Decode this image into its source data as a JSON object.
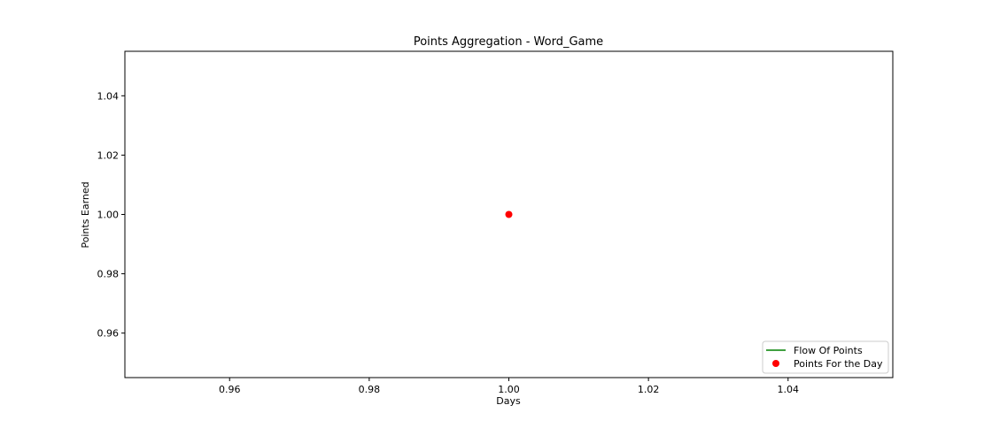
{
  "chart_data": {
    "type": "line",
    "title": "Points Aggregation - Word_Game",
    "xlabel": "Days",
    "ylabel": "Points Earned",
    "xlim": [
      0.945,
      1.055
    ],
    "ylim": [
      0.945,
      1.055
    ],
    "xticks": [
      "0.96",
      "0.98",
      "1.00",
      "1.02",
      "1.04"
    ],
    "yticks": [
      "0.96",
      "0.98",
      "1.00",
      "1.02",
      "1.04"
    ],
    "grid": false,
    "legend_position": "lower right",
    "series": [
      {
        "name": "Flow Of Points",
        "kind": "line",
        "color": "#008000",
        "x": [
          1
        ],
        "y": [
          1
        ]
      },
      {
        "name": "Points For the Day",
        "kind": "scatter",
        "color": "#ff0000",
        "x": [
          1
        ],
        "y": [
          1
        ]
      }
    ]
  }
}
